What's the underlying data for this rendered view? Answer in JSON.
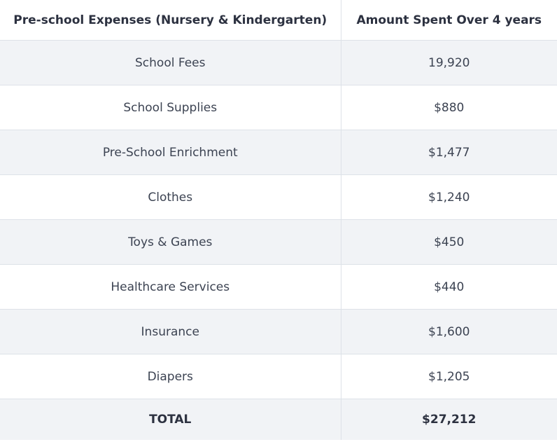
{
  "table": {
    "headers": [
      "Pre-school Expenses (Nursery & Kindergarten)",
      "Amount Spent Over 4 years"
    ],
    "rows": [
      {
        "item": "School Fees",
        "amount": "19,920"
      },
      {
        "item": "School Supplies",
        "amount": "$880"
      },
      {
        "item": "Pre-School Enrichment",
        "amount": "$1,477"
      },
      {
        "item": "Clothes",
        "amount": "$1,240"
      },
      {
        "item": "Toys & Games",
        "amount": "$450"
      },
      {
        "item": "Healthcare Services",
        "amount": "$440"
      },
      {
        "item": "Insurance",
        "amount": "$1,600"
      },
      {
        "item": "Diapers",
        "amount": "$1,205"
      }
    ],
    "total": {
      "label": "TOTAL",
      "amount": "$27,212"
    }
  },
  "colors": {
    "header_text": "#2c3140",
    "body_text": "#3c4352",
    "stripe": "#f1f3f6",
    "border": "#dde2e8"
  }
}
